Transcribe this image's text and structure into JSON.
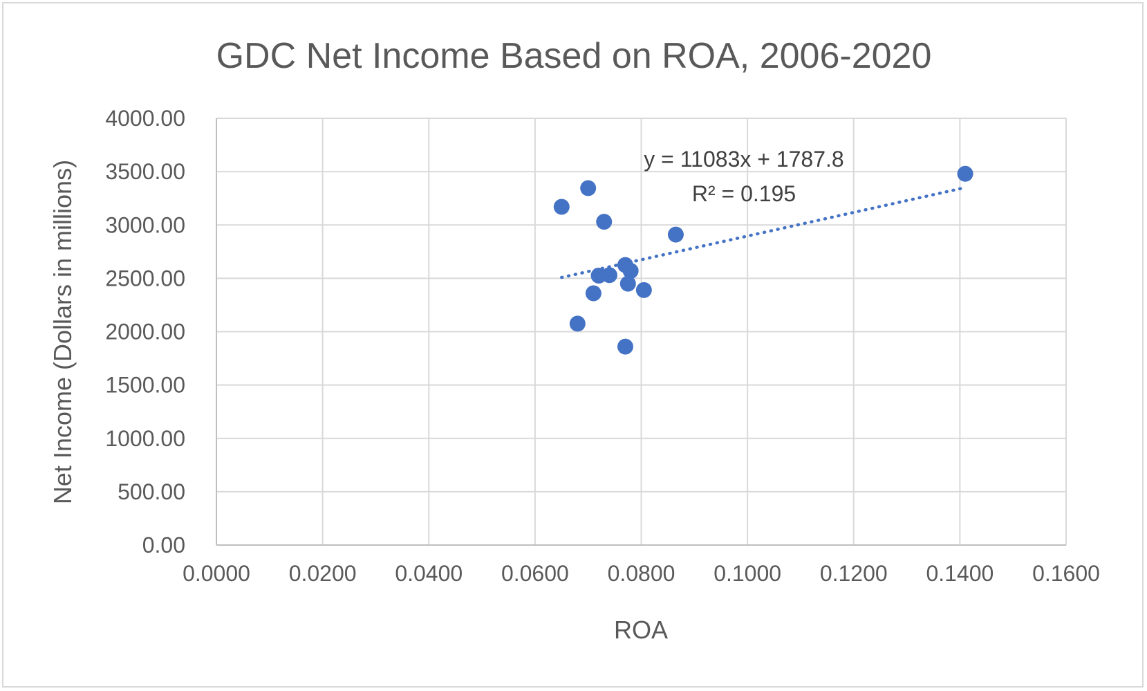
{
  "chart_data": {
    "type": "scatter",
    "title": "GDC Net Income Based on ROA, 2006-2020",
    "xlabel": "ROA",
    "ylabel": "Net Income (Dollars in millions)",
    "xlim": [
      0,
      0.16
    ],
    "ylim": [
      0,
      4000
    ],
    "x_ticks": [
      0,
      0.02,
      0.04,
      0.06,
      0.08,
      0.1,
      0.12,
      0.14,
      0.16
    ],
    "x_tick_labels": [
      "0.0000",
      "0.0200",
      "0.0400",
      "0.0600",
      "0.0800",
      "0.1000",
      "0.1200",
      "0.1400",
      "0.1600"
    ],
    "y_ticks": [
      0,
      500,
      1000,
      1500,
      2000,
      2500,
      3000,
      3500,
      4000
    ],
    "y_tick_labels": [
      "0.00",
      "500.00",
      "1000.00",
      "1500.00",
      "2000.00",
      "2500.00",
      "3000.00",
      "3500.00",
      "4000.00"
    ],
    "grid": true,
    "legend": "none",
    "marker_color": "#4472C4",
    "points": [
      {
        "x": 0.065,
        "y": 3170
      },
      {
        "x": 0.07,
        "y": 3345
      },
      {
        "x": 0.073,
        "y": 3030
      },
      {
        "x": 0.0865,
        "y": 2910
      },
      {
        "x": 0.077,
        "y": 2625
      },
      {
        "x": 0.078,
        "y": 2570
      },
      {
        "x": 0.072,
        "y": 2525
      },
      {
        "x": 0.074,
        "y": 2530
      },
      {
        "x": 0.0775,
        "y": 2450
      },
      {
        "x": 0.0805,
        "y": 2390
      },
      {
        "x": 0.071,
        "y": 2360
      },
      {
        "x": 0.068,
        "y": 2075
      },
      {
        "x": 0.077,
        "y": 1860
      },
      {
        "x": 0.141,
        "y": 3480
      }
    ],
    "trendline": {
      "type": "linear",
      "slope": 11083,
      "intercept": 1787.8,
      "x_range": [
        0.065,
        0.141
      ],
      "equation_label": "y = 11083x + 1787.8",
      "r2_label": "R² = 0.195"
    }
  }
}
